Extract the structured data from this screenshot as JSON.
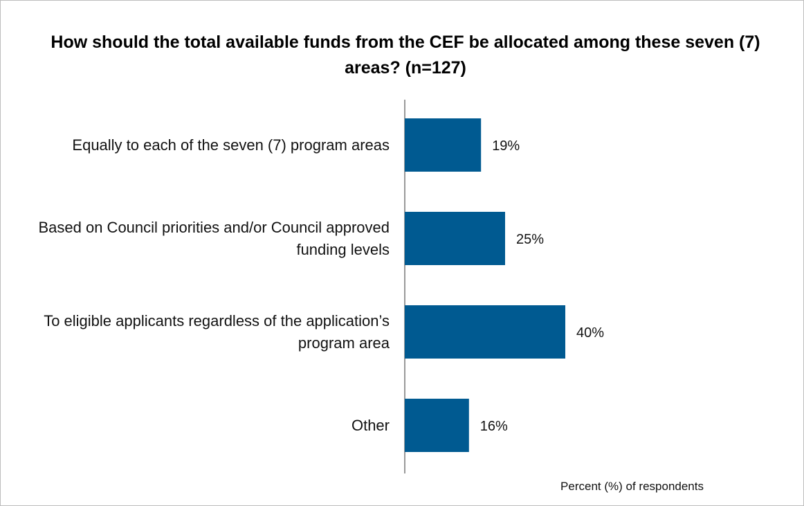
{
  "chart_data": {
    "type": "bar",
    "orientation": "horizontal",
    "title": "How should the total available funds from the CEF be allocated among these seven (7) areas? (n=127)",
    "categories": [
      "Equally to each of the seven (7) program areas",
      "Based on Council priorities and/or Council approved funding levels",
      "To eligible applicants regardless of the application’s program area",
      "Other"
    ],
    "values": [
      19,
      25,
      40,
      16
    ],
    "value_labels": [
      "19%",
      "25%",
      "40%",
      "16%"
    ],
    "color": "#005a91",
    "xlim": [
      0,
      80
    ],
    "x_label": "Percent (%) of respondents"
  }
}
